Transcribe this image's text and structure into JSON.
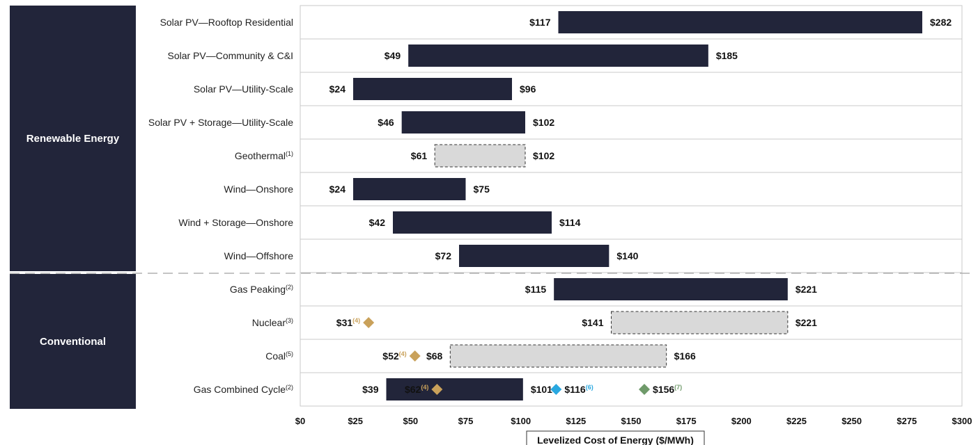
{
  "chart_data": {
    "type": "bar",
    "subtype": "floating-range",
    "xlabel": "Levelized Cost of Energy ($/MWh)",
    "xlim": [
      0,
      300
    ],
    "xticks": [
      0,
      25,
      50,
      75,
      100,
      125,
      150,
      175,
      200,
      225,
      250,
      275,
      300
    ],
    "tick_prefix": "$",
    "grid": "vertical-sparse",
    "colors": {
      "bar": "#22253a",
      "bar_hatched": "#d9d9d9",
      "group_panel": "#22253a",
      "gold": "#c9a15a",
      "blue": "#29a8e0",
      "green": "#6f9a6a",
      "divider": "#b0b0b0"
    },
    "groups": [
      {
        "label": "Renewable Energy",
        "rows": [
          0,
          7
        ]
      },
      {
        "label": "Conventional",
        "rows": [
          8,
          11
        ]
      }
    ],
    "rows": [
      {
        "category": "Solar PV—Rooftop Residential",
        "note": "",
        "low": 117,
        "high": 282,
        "style": "solid"
      },
      {
        "category": "Solar PV—Community & C&I",
        "note": "",
        "low": 49,
        "high": 185,
        "style": "solid"
      },
      {
        "category": "Solar PV—Utility-Scale",
        "note": "",
        "low": 24,
        "high": 96,
        "style": "solid"
      },
      {
        "category": "Solar PV + Storage—Utility-Scale",
        "note": "",
        "low": 46,
        "high": 102,
        "style": "solid"
      },
      {
        "category": "Geothermal",
        "note": "(1)",
        "low": 61,
        "high": 102,
        "style": "dashed"
      },
      {
        "category": "Wind—Onshore",
        "note": "",
        "low": 24,
        "high": 75,
        "style": "solid"
      },
      {
        "category": "Wind + Storage—Onshore",
        "note": "",
        "low": 42,
        "high": 114,
        "style": "solid"
      },
      {
        "category": "Wind—Offshore",
        "note": "",
        "low": 72,
        "high": 140,
        "style": "solid"
      },
      {
        "category": "Gas Peaking",
        "note": "(2)",
        "low": 115,
        "high": 221,
        "style": "solid"
      },
      {
        "category": "Nuclear",
        "note": "(3)",
        "low": 141,
        "high": 221,
        "style": "dashed"
      },
      {
        "category": "Coal",
        "note": "(5)",
        "low": 68,
        "high": 166,
        "style": "dashed"
      },
      {
        "category": "Gas Combined Cycle",
        "note": "(2)",
        "low": 39,
        "high": 101,
        "style": "solid"
      }
    ],
    "markers": [
      {
        "row": 9,
        "value": 31,
        "note": "(4)",
        "color": "gold",
        "label_side": "left"
      },
      {
        "row": 10,
        "value": 52,
        "note": "(4)",
        "color": "gold",
        "label_side": "left"
      },
      {
        "row": 11,
        "value": 62,
        "note": "(4)",
        "color": "gold",
        "label_side": "left"
      },
      {
        "row": 11,
        "value": 116,
        "note": "(6)",
        "color": "blue",
        "label_side": "right"
      },
      {
        "row": 11,
        "value": 156,
        "note": "(7)",
        "color": "green",
        "label_side": "right"
      }
    ]
  }
}
